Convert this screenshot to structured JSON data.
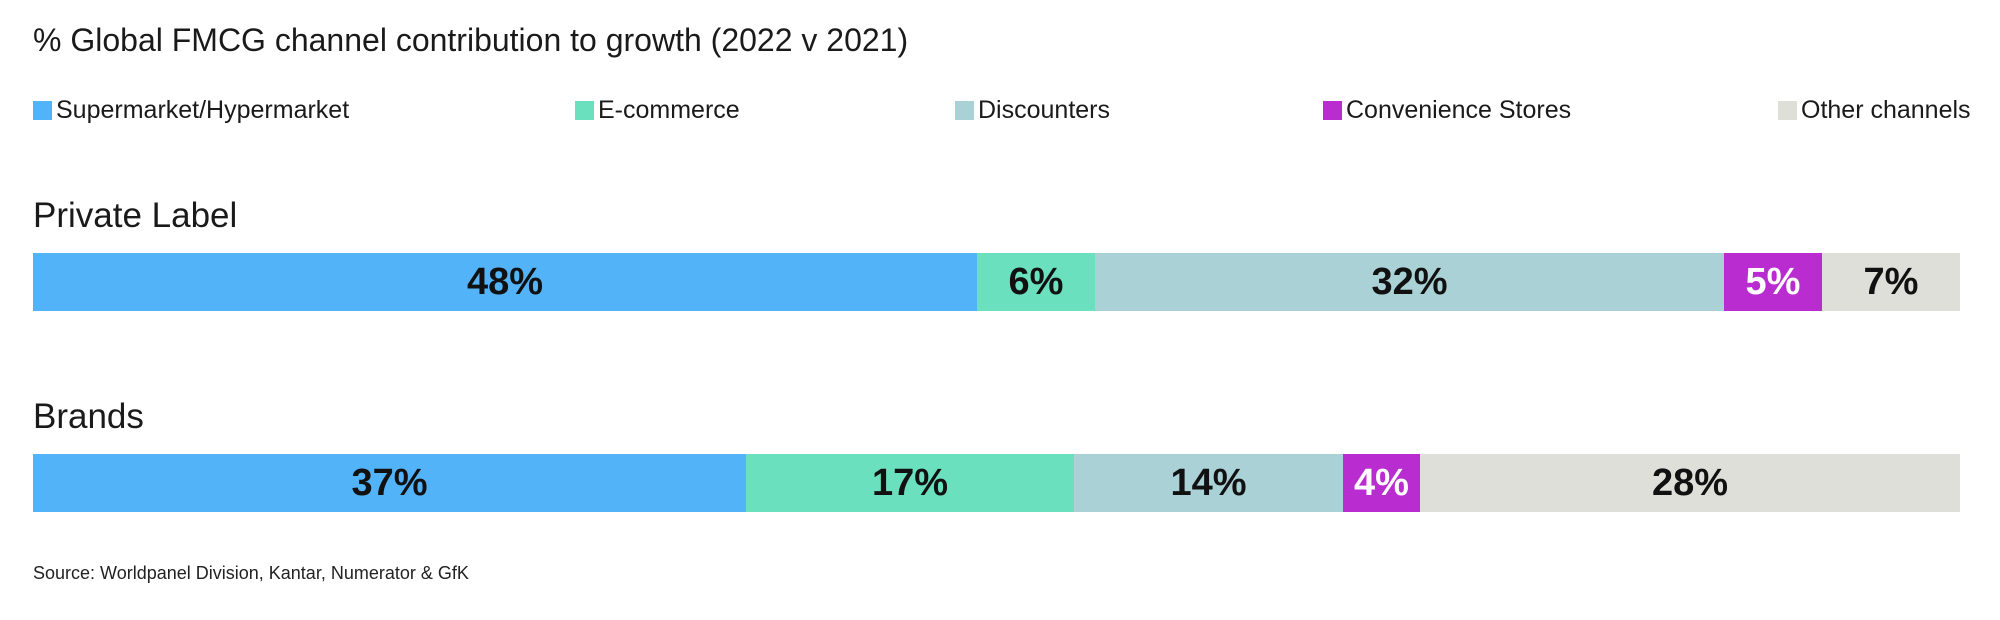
{
  "chart_data": {
    "type": "bar",
    "orientation": "horizontal",
    "stacked": true,
    "title": "% Global FMCG channel contribution to growth  (2022 v 2021)",
    "legend_position": "top",
    "unit": "%",
    "categories": [
      "Private Label",
      "Brands"
    ],
    "series": [
      {
        "name": "Supermarket/Hypermarket",
        "color": "#52b3f8",
        "text_color": "#111111",
        "values": [
          48,
          37
        ],
        "labels": [
          "48%",
          "37%"
        ]
      },
      {
        "name": "E-commerce",
        "color": "#6ae0be",
        "text_color": "#111111",
        "values": [
          6,
          17
        ],
        "labels": [
          "6%",
          "17%"
        ]
      },
      {
        "name": "Discounters",
        "color": "#a9d1d6",
        "text_color": "#111111",
        "values": [
          32,
          14
        ],
        "labels": [
          "32%",
          "14%"
        ]
      },
      {
        "name": "Convenience Stores",
        "color": "#b92ccf",
        "text_color": "#ffffff",
        "values": [
          5,
          4
        ],
        "labels": [
          "5%",
          "4%"
        ]
      },
      {
        "name": "Other channels",
        "color": "#dfdfda",
        "text_color": "#111111",
        "values": [
          7,
          28
        ],
        "labels": [
          "7%",
          "28%"
        ]
      }
    ]
  },
  "source": "Source: Worldpanel Division, Kantar, Numerator & GfK"
}
